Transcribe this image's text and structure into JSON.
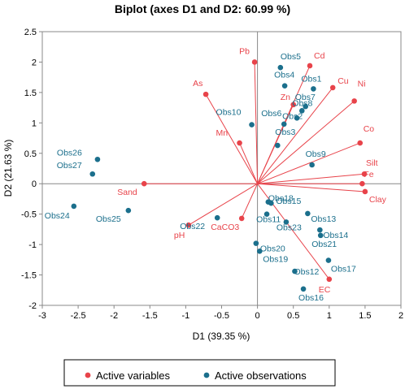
{
  "chart_data": {
    "type": "scatter",
    "title": "Biplot (axes D1 and D2: 60.99 %)",
    "xlabel": "D1 (39.35 %)",
    "ylabel": "D2 (21.63 %)",
    "xlim": [
      -3,
      2
    ],
    "ylim": [
      -2,
      2.5
    ],
    "xticks": [
      -3,
      -2.5,
      -2,
      -1.5,
      -1,
      -0.5,
      0,
      0.5,
      1,
      1.5,
      2
    ],
    "yticks": [
      -2,
      -1.5,
      -1,
      -0.5,
      0,
      0.5,
      1,
      1.5,
      2,
      2.5
    ],
    "grid": false,
    "legend_position": "bottom",
    "colors": {
      "variables": "#e8434a",
      "observations": "#1b6f8c"
    },
    "series": [
      {
        "name": "Active variables",
        "points": [
          {
            "label": "Pb",
            "x": -0.04,
            "y": 2.0
          },
          {
            "label": "Cd",
            "x": 0.73,
            "y": 1.94
          },
          {
            "label": "Cu",
            "x": 1.05,
            "y": 1.58
          },
          {
            "label": "Zn",
            "x": 0.5,
            "y": 1.3
          },
          {
            "label": "As",
            "x": -0.72,
            "y": 1.47
          },
          {
            "label": "Ni",
            "x": 1.35,
            "y": 1.36
          },
          {
            "label": "Mn",
            "x": -0.25,
            "y": 0.67
          },
          {
            "label": "Co",
            "x": 1.43,
            "y": 0.67
          },
          {
            "label": "Silt",
            "x": 1.49,
            "y": 0.16
          },
          {
            "label": "Fe",
            "x": 1.46,
            "y": 0.0
          },
          {
            "label": "Clay",
            "x": 1.5,
            "y": -0.13
          },
          {
            "label": "Sand",
            "x": -1.58,
            "y": 0.0
          },
          {
            "label": "pH",
            "x": -0.96,
            "y": -0.68
          },
          {
            "label": "CaCO3",
            "x": -0.22,
            "y": -0.57
          },
          {
            "label": "EC",
            "x": 1.0,
            "y": -1.57
          }
        ]
      },
      {
        "name": "Active observations",
        "points": [
          {
            "label": "Obs5",
            "x": 0.32,
            "y": 1.91
          },
          {
            "label": "Obs4",
            "x": 0.38,
            "y": 1.61
          },
          {
            "label": "Obs1",
            "x": 0.78,
            "y": 1.56
          },
          {
            "label": "Obs7",
            "x": 0.67,
            "y": 1.27
          },
          {
            "label": "Obs8",
            "x": 0.62,
            "y": 1.2
          },
          {
            "label": "Obs2",
            "x": 0.55,
            "y": 1.08
          },
          {
            "label": "Obs6",
            "x": 0.37,
            "y": 0.98
          },
          {
            "label": "Obs10",
            "x": -0.08,
            "y": 0.97
          },
          {
            "label": "Obs3",
            "x": 0.28,
            "y": 0.63
          },
          {
            "label": "Obs9",
            "x": 0.76,
            "y": 0.31
          },
          {
            "label": "Obs26",
            "x": -2.23,
            "y": 0.4
          },
          {
            "label": "Obs27",
            "x": -2.3,
            "y": 0.16
          },
          {
            "label": "Obs24",
            "x": -2.56,
            "y": -0.37
          },
          {
            "label": "Obs25",
            "x": -1.8,
            "y": -0.44
          },
          {
            "label": "Obs22",
            "x": -0.56,
            "y": -0.56
          },
          {
            "label": "Obs18",
            "x": 0.15,
            "y": -0.3
          },
          {
            "label": "Obs15",
            "x": 0.19,
            "y": -0.32
          },
          {
            "label": "Obs11",
            "x": 0.13,
            "y": -0.5
          },
          {
            "label": "Obs13",
            "x": 0.7,
            "y": -0.49
          },
          {
            "label": "Obs23",
            "x": 0.4,
            "y": -0.63
          },
          {
            "label": "Obs14",
            "x": 0.87,
            "y": -0.76
          },
          {
            "label": "Obs21",
            "x": 0.88,
            "y": -0.85
          },
          {
            "label": "Obs20",
            "x": -0.02,
            "y": -0.98
          },
          {
            "label": "Obs19",
            "x": 0.03,
            "y": -1.11
          },
          {
            "label": "Obs17",
            "x": 0.99,
            "y": -1.26
          },
          {
            "label": "Obs12",
            "x": 0.52,
            "y": -1.44
          },
          {
            "label": "Obs16",
            "x": 0.64,
            "y": -1.73
          }
        ]
      }
    ]
  }
}
